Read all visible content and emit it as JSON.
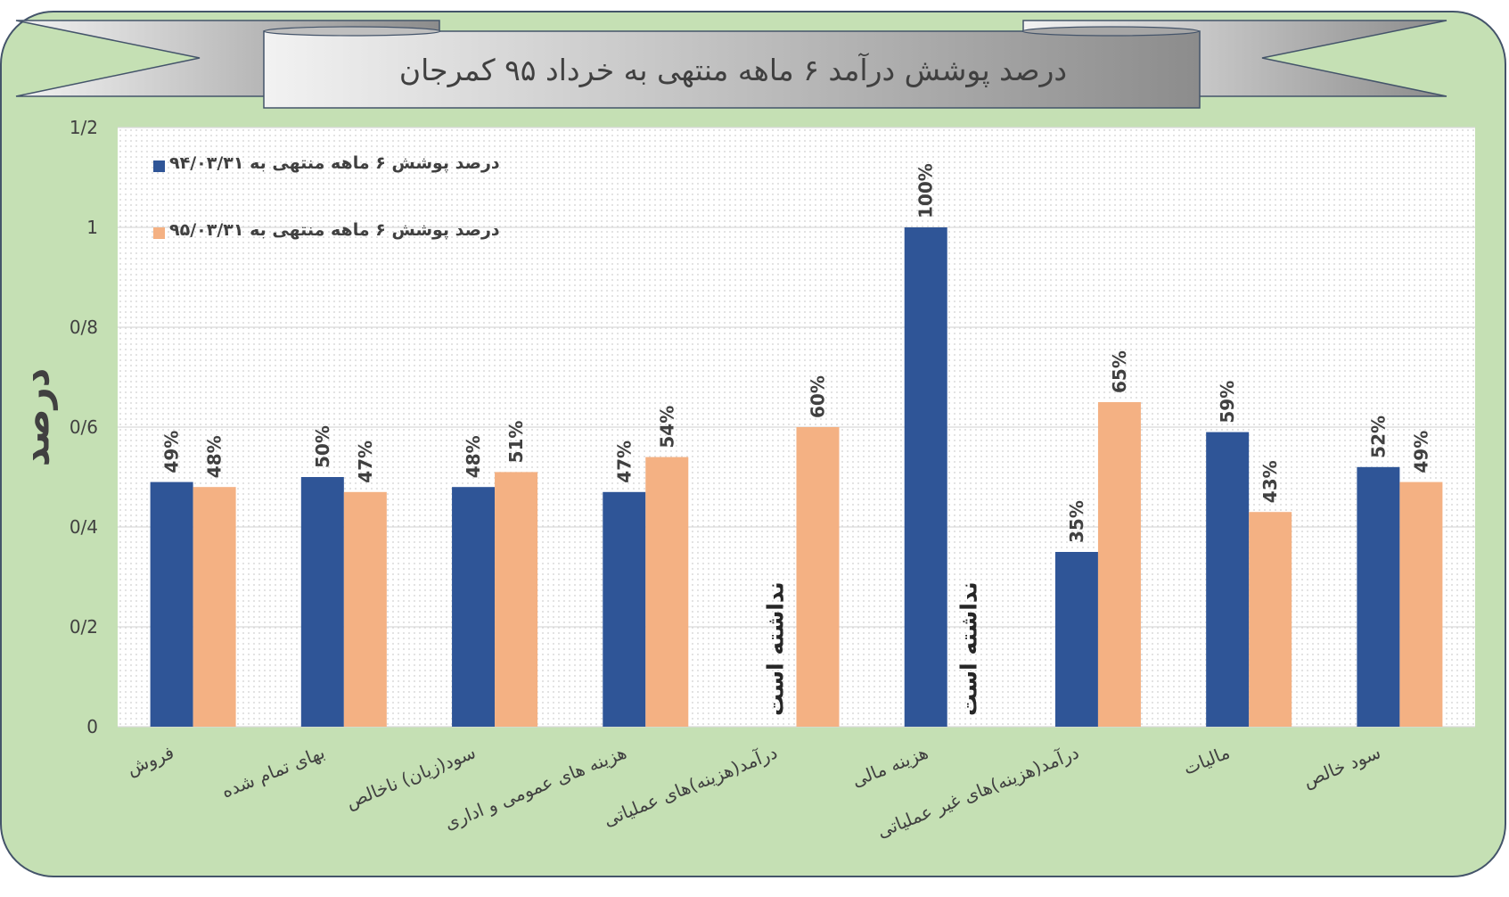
{
  "chart_data": {
    "type": "bar",
    "title": "درصد پوشش درآمد ۶ ماهه منتهی به خرداد ۹۵ کمرجان",
    "ylabel": "درصد",
    "ylim": [
      0,
      1.2
    ],
    "yticks": [
      "0",
      "0/2",
      "0/4",
      "0/6",
      "0/8",
      "1",
      "1/2"
    ],
    "categories": [
      "فروش",
      "بهای تمام شده",
      "سود(زیان) ناخالص",
      "هزینه های عمومی و اداری",
      "درآمد(هزینه)های عملیاتی",
      "هزینه مالی",
      "درآمد(هزینه)های غیر عملیاتی",
      "مالیات",
      "سود خالص"
    ],
    "series": [
      {
        "name": "درصد پوشش ۶ ماهه منتهی به ۹۴/۰۳/۳۱",
        "color": "#2f5597",
        "values": [
          0.49,
          0.5,
          0.48,
          0.47,
          null,
          1.0,
          0.35,
          0.59,
          0.52
        ],
        "labels": [
          "49%",
          "50%",
          "48%",
          "47%",
          "",
          "100%",
          "35%",
          "59%",
          "52%"
        ]
      },
      {
        "name": "درصد پوشش ۶ ماهه منتهی به ۹۵/۰۳/۳۱",
        "color": "#f4b183",
        "values": [
          0.48,
          0.47,
          0.51,
          0.54,
          0.6,
          null,
          0.65,
          0.43,
          0.49
        ],
        "labels": [
          "48%",
          "47%",
          "51%",
          "54%",
          "60%",
          "",
          "65%",
          "43%",
          "49%"
        ]
      }
    ],
    "annotations": [
      {
        "category_index": 4,
        "series_index": 0,
        "text": "نداشته است"
      },
      {
        "category_index": 5,
        "series_index": 1,
        "text": "نداشته است"
      }
    ],
    "grid": true,
    "legend_position": "top-left"
  }
}
